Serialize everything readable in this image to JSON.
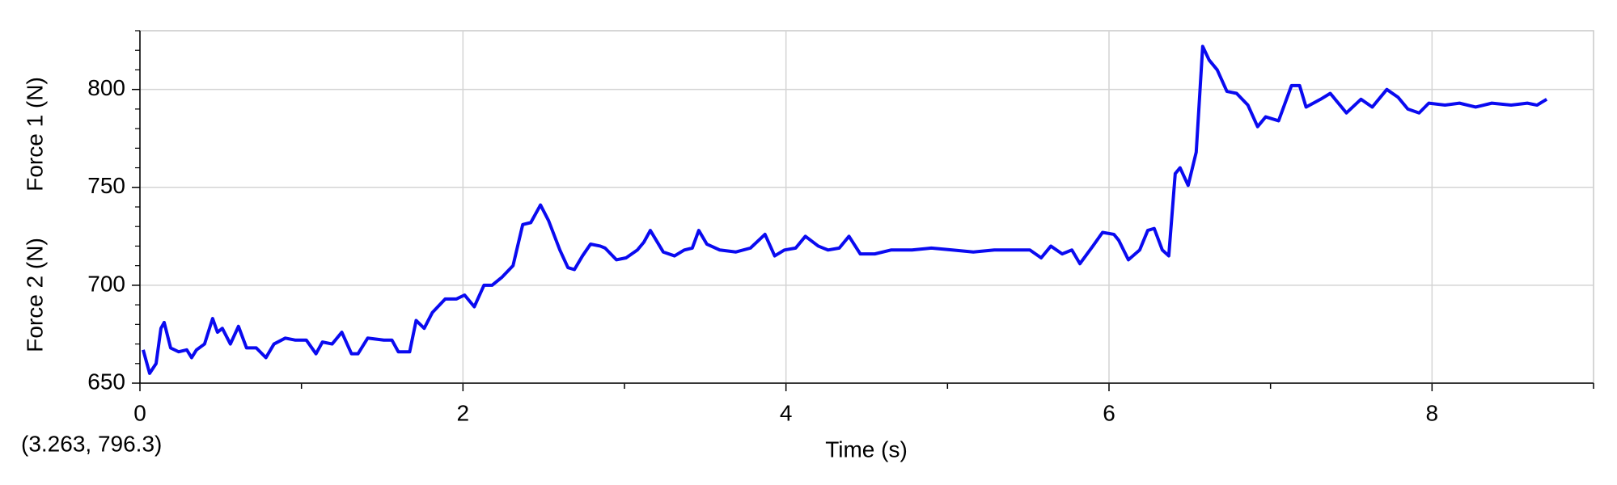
{
  "chart_data": {
    "type": "line",
    "x_label": "Time (s)",
    "annotation": "(3.263, 796.3)",
    "extra_y_label": {
      "text": "Force 2 (N)",
      "color": "#00a050"
    },
    "xlim": [
      0,
      9
    ],
    "xticks": [
      0,
      2,
      4,
      6,
      8
    ],
    "x_minor_ticks": [
      1,
      3,
      5,
      7,
      9
    ],
    "ylim": [
      650,
      830
    ],
    "yticks": [
      650,
      700,
      750,
      800
    ],
    "y_minor_ticks": [
      660,
      670,
      680,
      690,
      710,
      720,
      730,
      740,
      760,
      770,
      780,
      790,
      810,
      820,
      830
    ],
    "grid": true,
    "x": [
      0.02,
      0.06,
      0.1,
      0.13,
      0.15,
      0.19,
      0.24,
      0.29,
      0.32,
      0.35,
      0.4,
      0.45,
      0.48,
      0.51,
      0.56,
      0.61,
      0.66,
      0.72,
      0.78,
      0.83,
      0.9,
      0.96,
      1.03,
      1.09,
      1.13,
      1.19,
      1.25,
      1.31,
      1.35,
      1.41,
      1.51,
      1.56,
      1.6,
      1.67,
      1.71,
      1.76,
      1.81,
      1.89,
      1.96,
      2.01,
      2.07,
      2.13,
      2.18,
      2.24,
      2.31,
      2.37,
      2.42,
      2.48,
      2.53,
      2.6,
      2.65,
      2.69,
      2.74,
      2.79,
      2.85,
      2.88,
      2.95,
      3.01,
      3.08,
      3.12,
      3.16,
      3.24,
      3.31,
      3.37,
      3.42,
      3.46,
      3.51,
      3.59,
      3.69,
      3.78,
      3.87,
      3.93,
      3.99,
      4.06,
      4.12,
      4.2,
      4.26,
      4.33,
      4.39,
      4.46,
      4.55,
      4.65,
      4.78,
      4.9,
      5.03,
      5.16,
      5.29,
      5.42,
      5.51,
      5.58,
      5.64,
      5.71,
      5.77,
      5.82,
      5.9,
      5.96,
      6.03,
      6.06,
      6.12,
      6.19,
      6.24,
      6.28,
      6.33,
      6.37,
      6.41,
      6.44,
      6.49,
      6.54,
      6.58,
      6.62,
      6.67,
      6.73,
      6.79,
      6.86,
      6.92,
      6.97,
      7.05,
      7.13,
      7.18,
      7.22,
      7.31,
      7.37,
      7.47,
      7.56,
      7.63,
      7.72,
      7.79,
      7.85,
      7.92,
      7.98,
      8.08,
      8.17,
      8.27,
      8.37,
      8.49,
      8.59,
      8.65,
      8.71
    ],
    "series": [
      {
        "name": "Force 1 (N)",
        "color": "#0a0af0",
        "values": [
          667,
          655,
          660,
          678,
          681,
          668,
          666,
          667,
          663,
          667,
          670,
          683,
          676,
          678,
          670,
          679,
          668,
          668,
          663,
          670,
          673,
          672,
          672,
          665,
          671,
          670,
          676,
          665,
          665,
          673,
          672,
          672,
          666,
          666,
          682,
          678,
          686,
          693,
          693,
          695,
          689,
          700,
          700,
          704,
          710,
          731,
          732,
          741,
          733,
          718,
          709,
          708,
          715,
          721,
          720,
          719,
          713,
          714,
          718,
          722,
          728,
          717,
          715,
          718,
          719,
          728,
          721,
          718,
          717,
          719,
          726,
          715,
          718,
          719,
          725,
          720,
          718,
          719,
          725,
          716,
          716,
          718,
          718,
          719,
          718,
          717,
          718,
          718,
          718,
          714,
          720,
          716,
          718,
          711,
          720,
          727,
          726,
          723,
          713,
          718,
          728,
          729,
          718,
          715,
          757,
          760,
          751,
          768,
          822,
          815,
          810,
          799,
          798,
          792,
          781,
          786,
          784,
          802,
          802,
          791,
          795,
          798,
          788,
          795,
          791,
          800,
          796,
          790,
          788,
          793,
          792,
          793,
          791,
          793,
          792,
          793,
          792,
          795
        ]
      }
    ]
  }
}
